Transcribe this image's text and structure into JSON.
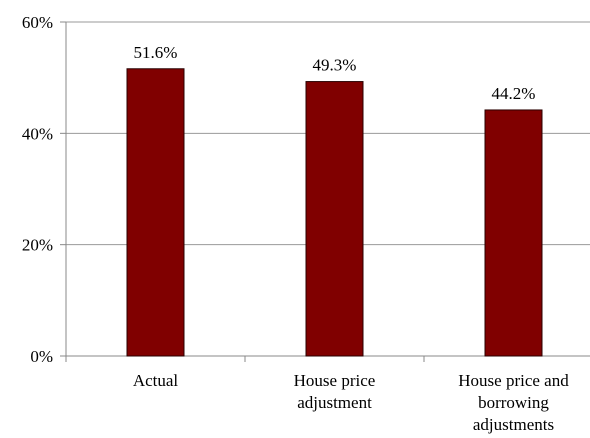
{
  "chart_data": {
    "type": "bar",
    "title": "",
    "xlabel": "",
    "ylabel": "",
    "categories": [
      [
        "Actual"
      ],
      [
        "House price",
        "adjustment"
      ],
      [
        "House price and",
        "borrowing",
        "adjustments"
      ]
    ],
    "values": [
      51.6,
      49.3,
      44.2
    ],
    "data_labels": [
      "51.6%",
      "49.3%",
      "44.2%"
    ],
    "ylim": [
      0,
      60
    ],
    "yticks": [
      0,
      20,
      40,
      60
    ],
    "ytick_labels": [
      "0%",
      "20%",
      "40%",
      "60%"
    ],
    "grid": true,
    "legend": "none",
    "colors": {
      "bar_fill": "#800000",
      "bar_stroke": "#2a0000",
      "grid": "#9a9a9a",
      "axis": "#888888"
    }
  }
}
